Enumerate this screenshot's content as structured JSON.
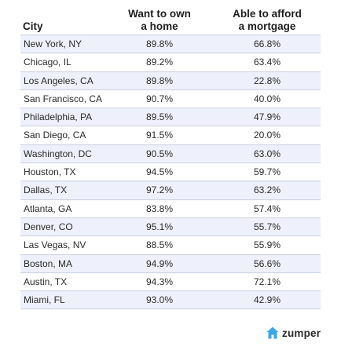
{
  "chart_data": {
    "type": "table",
    "columns": [
      "City",
      "Want to own a home",
      "Able to afford a mortgage"
    ],
    "header": {
      "city": "City",
      "own_line1": "Want to own",
      "own_line2": "a home",
      "afford_line1": "Able to afford",
      "afford_line2": "a mortgage"
    },
    "rows": [
      {
        "city": "New York, NY",
        "want_to_own": "89.8%",
        "able_to_afford": "66.8%"
      },
      {
        "city": "Chicago, IL",
        "want_to_own": "89.2%",
        "able_to_afford": "63.4%"
      },
      {
        "city": "Los Angeles, CA",
        "want_to_own": "89.8%",
        "able_to_afford": "22.8%"
      },
      {
        "city": "San Francisco, CA",
        "want_to_own": "90.7%",
        "able_to_afford": "40.0%"
      },
      {
        "city": "Philadelphia, PA",
        "want_to_own": "89.5%",
        "able_to_afford": "47.9%"
      },
      {
        "city": "San Diego, CA",
        "want_to_own": "91.5%",
        "able_to_afford": "20.0%"
      },
      {
        "city": "Washington, DC",
        "want_to_own": "90.5%",
        "able_to_afford": "63.0%"
      },
      {
        "city": "Houston, TX",
        "want_to_own": "94.5%",
        "able_to_afford": "59.7%"
      },
      {
        "city": "Dallas, TX",
        "want_to_own": "97.2%",
        "able_to_afford": "63.2%"
      },
      {
        "city": "Atlanta, GA",
        "want_to_own": "83.8%",
        "able_to_afford": "57.4%"
      },
      {
        "city": "Denver, CO",
        "want_to_own": "95.1%",
        "able_to_afford": "55.7%"
      },
      {
        "city": "Las Vegas, NV",
        "want_to_own": "88.5%",
        "able_to_afford": "55.9%"
      },
      {
        "city": "Boston, MA",
        "want_to_own": "94.9%",
        "able_to_afford": "56.6%"
      },
      {
        "city": "Austin, TX",
        "want_to_own": "94.3%",
        "able_to_afford": "72.1%"
      },
      {
        "city": "Miami, FL",
        "want_to_own": "93.0%",
        "able_to_afford": "42.9%"
      }
    ]
  },
  "branding": {
    "logo_text": "zumper",
    "logo_icon": "house-icon",
    "logo_color": "#3aa6ee"
  },
  "colors": {
    "row_alt": "#eef1fb",
    "divider": "#c9cfe0"
  }
}
